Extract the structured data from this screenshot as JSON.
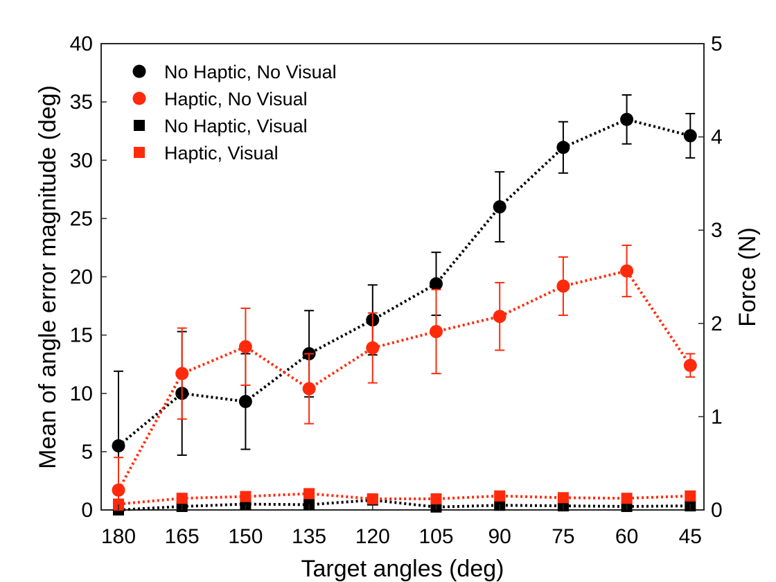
{
  "chart_data": {
    "type": "line",
    "xlabel": "Target angles (deg)",
    "ylabel": "Mean of angle error magnitude (deg)",
    "y2label": "Force (N)",
    "categories": [
      "180",
      "165",
      "150",
      "135",
      "120",
      "105",
      "90",
      "75",
      "60",
      "45"
    ],
    "ylim": [
      0,
      40
    ],
    "y2lim": [
      0,
      5
    ],
    "yticks": [
      "0",
      "5",
      "10",
      "15",
      "20",
      "25",
      "30",
      "35",
      "40"
    ],
    "y2ticks": [
      "0",
      "1",
      "2",
      "3",
      "4",
      "5"
    ],
    "grid": false,
    "legend_position": "top-left",
    "series": [
      {
        "name": "No Haptic, No Visual",
        "marker": "circle",
        "color": "#000000",
        "values": [
          5.5,
          10.0,
          9.3,
          13.4,
          16.3,
          19.4,
          26.0,
          31.1,
          33.5,
          32.1
        ],
        "error": [
          6.4,
          5.3,
          4.1,
          3.7,
          3.0,
          2.7,
          3.0,
          2.2,
          2.1,
          1.9
        ]
      },
      {
        "name": "Haptic, No Visual",
        "marker": "circle",
        "color": "#ff2a0c",
        "values": [
          1.7,
          11.7,
          14.0,
          10.4,
          13.9,
          15.3,
          16.6,
          19.2,
          20.5,
          12.4
        ],
        "error": [
          2.8,
          3.9,
          3.3,
          3.0,
          3.0,
          3.6,
          2.9,
          2.5,
          2.2,
          1.0
        ]
      },
      {
        "name": "No Haptic, Visual",
        "marker": "square",
        "color": "#000000",
        "values": [
          0.0,
          0.3,
          0.5,
          0.45,
          0.85,
          0.25,
          0.4,
          0.35,
          0.3,
          0.35
        ]
      },
      {
        "name": "Haptic, Visual",
        "marker": "square",
        "color": "#ff2a0c",
        "values": [
          0.5,
          1.0,
          1.15,
          1.4,
          0.95,
          0.95,
          1.2,
          1.05,
          1.0,
          1.2
        ]
      }
    ]
  }
}
